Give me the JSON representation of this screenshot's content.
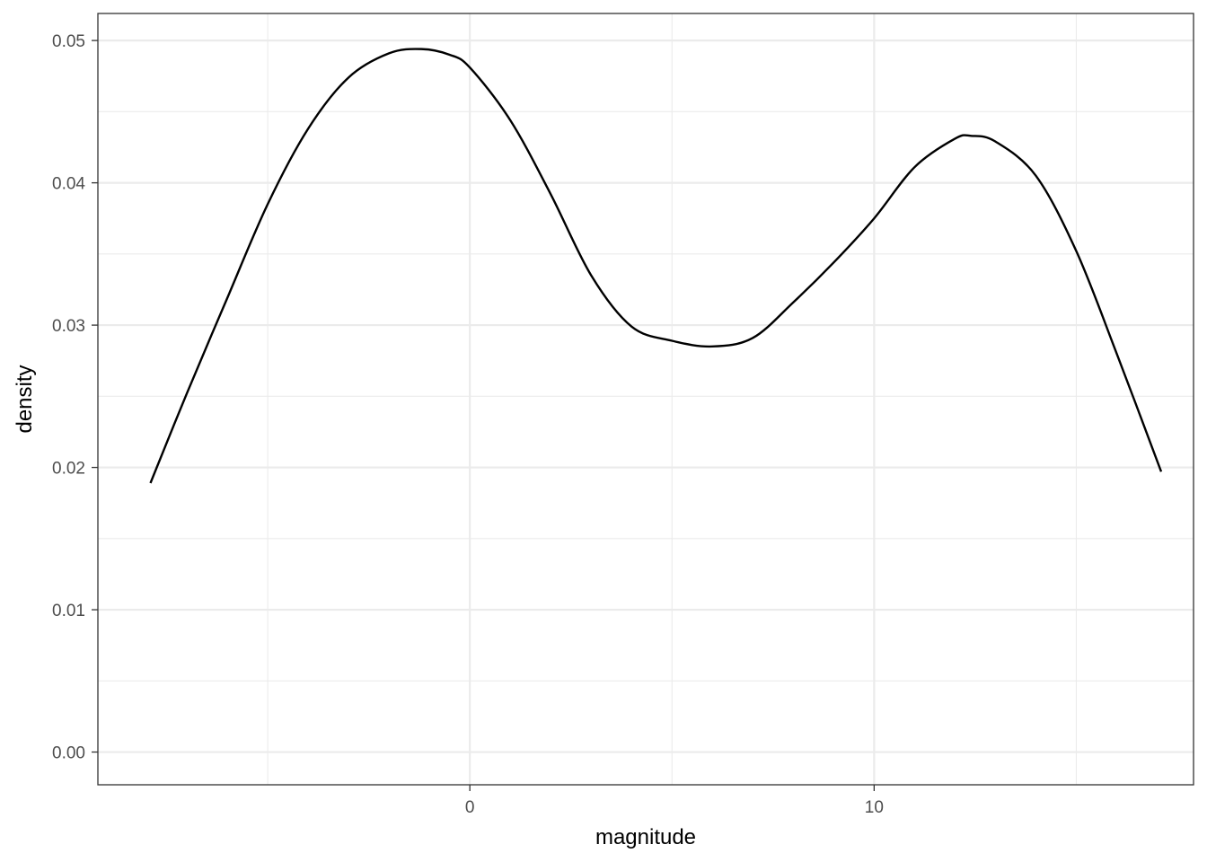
{
  "chart_data": {
    "type": "line",
    "xlabel": "magnitude",
    "ylabel": "density",
    "xlim": [
      -9.2,
      17.9
    ],
    "ylim": [
      -0.0023,
      0.0519
    ],
    "x_ticks": [
      0,
      10
    ],
    "x_tick_labels": [
      "0",
      "10"
    ],
    "x_minor_ticks": [
      -5,
      5,
      15
    ],
    "y_ticks": [
      0.0,
      0.01,
      0.02,
      0.03,
      0.04,
      0.05
    ],
    "y_tick_labels": [
      "0.00",
      "0.01",
      "0.02",
      "0.03",
      "0.04",
      "0.05"
    ],
    "y_minor_ticks": [
      0.005,
      0.015,
      0.025,
      0.035,
      0.045
    ],
    "grid": true,
    "colors": {
      "line": "#000000",
      "grid": "#ebebeb",
      "border": "#333333",
      "tick_text": "#4d4d4d"
    },
    "series": [
      {
        "x": [
          -7.9,
          -7.0,
          -6.0,
          -5.0,
          -4.0,
          -3.0,
          -2.0,
          -1.2,
          -0.5,
          0.0,
          1.0,
          2.0,
          3.0,
          4.0,
          5.0,
          6.0,
          7.0,
          8.0,
          9.0,
          10.0,
          11.0,
          12.0,
          12.4,
          13.0,
          14.0,
          15.0,
          16.0,
          17.1
        ],
        "y": [
          0.0189,
          0.0252,
          0.0319,
          0.0385,
          0.0438,
          0.0474,
          0.0491,
          0.0494,
          0.049,
          0.0481,
          0.0444,
          0.0392,
          0.0335,
          0.0299,
          0.0289,
          0.0285,
          0.0291,
          0.0316,
          0.0344,
          0.0375,
          0.0411,
          0.0431,
          0.0433,
          0.0429,
          0.0405,
          0.0352,
          0.028,
          0.0197
        ]
      }
    ]
  }
}
